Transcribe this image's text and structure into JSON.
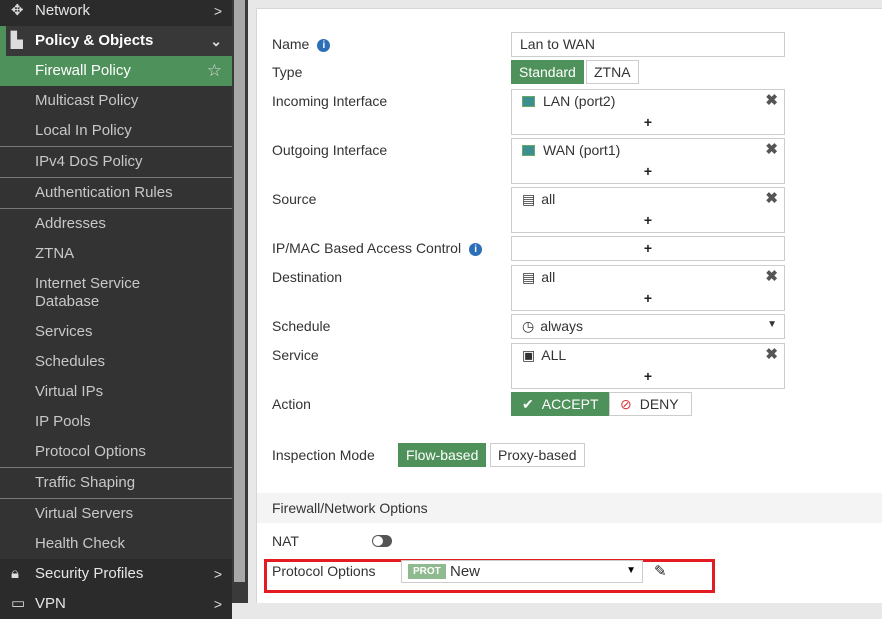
{
  "sidebar": {
    "network": "Network",
    "policy_objects": "Policy & Objects",
    "items": [
      "Firewall Policy",
      "Multicast Policy",
      "Local In Policy",
      "IPv4 DoS Policy",
      "Authentication Rules",
      "Addresses",
      "ZTNA",
      "Internet Service",
      "Database",
      "Services",
      "Schedules",
      "Virtual IPs",
      "IP Pools",
      "Protocol Options",
      "Traffic Shaping",
      "Virtual Servers",
      "Health Check"
    ],
    "security_profiles": "Security Profiles",
    "vpn": "VPN"
  },
  "form": {
    "name_label": "Name",
    "name_value": "Lan to WAN",
    "type_label": "Type",
    "type_options": [
      "Standard",
      "ZTNA"
    ],
    "incoming_label": "Incoming Interface",
    "incoming_value": "LAN (port2)",
    "outgoing_label": "Outgoing Interface",
    "outgoing_value": "WAN (port1)",
    "source_label": "Source",
    "source_value": "all",
    "ipmac_label": "IP/MAC Based Access Control",
    "destination_label": "Destination",
    "destination_value": "all",
    "schedule_label": "Schedule",
    "schedule_value": "always",
    "service_label": "Service",
    "service_value": "ALL",
    "action_label": "Action",
    "action_accept": "ACCEPT",
    "action_deny": "DENY",
    "inspection_label": "Inspection Mode",
    "inspection_options": [
      "Flow-based",
      "Proxy-based"
    ],
    "section_title": "Firewall/Network Options",
    "nat_label": "NAT",
    "nat_enabled": false,
    "protocol_label": "Protocol Options",
    "protocol_badge": "PROT",
    "protocol_value": "New",
    "plus": "+",
    "remove": "✖"
  },
  "colors": {
    "accent": "#4f915a",
    "highlight": "#e31c23"
  }
}
